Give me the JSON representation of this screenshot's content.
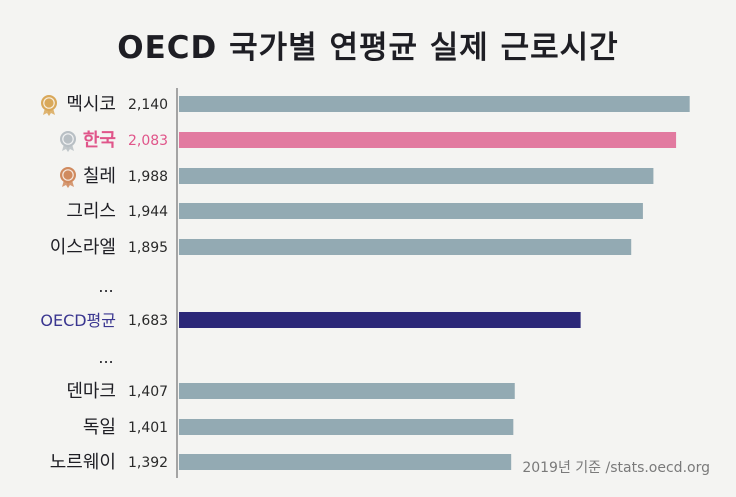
{
  "chart_data": {
    "type": "bar",
    "orientation": "horizontal",
    "title": "OECD 국가별 연평균 실제 근로시간",
    "source": "2019년 기준 /stats.oecd.org",
    "xlim": [
      0,
      2200
    ],
    "rows": [
      {
        "label": "멕시코",
        "value": 2140,
        "value_label": "2,140",
        "medal": "gold"
      },
      {
        "label": "한국",
        "value": 2083,
        "value_label": "2,083",
        "medal": "silver",
        "highlight": "korea"
      },
      {
        "label": "칠레",
        "value": 1988,
        "value_label": "1,988",
        "medal": "bronze"
      },
      {
        "label": "그리스",
        "value": 1944,
        "value_label": "1,944"
      },
      {
        "label": "이스라엘",
        "value": 1895,
        "value_label": "1,895"
      },
      {
        "label": "...",
        "ellipsis": true
      },
      {
        "label": "OECD평균",
        "value": 1683,
        "value_label": "1,683",
        "highlight": "average"
      },
      {
        "label": "...",
        "ellipsis": true
      },
      {
        "label": "덴마크",
        "value": 1407,
        "value_label": "1,407"
      },
      {
        "label": "독일",
        "value": 1401,
        "value_label": "1,401"
      },
      {
        "label": "노르웨이",
        "value": 1392,
        "value_label": "1,392"
      }
    ]
  },
  "colors": {
    "bar_default": "#93aab3",
    "bar_korea": "#e27aa0",
    "bar_average": "#2b2778",
    "label_default": "#1e1e24",
    "label_korea": "#e0558a",
    "label_average": "#3a3690",
    "axis": "#8a8a8a",
    "medal_gold": "#d9a85a",
    "medal_silver": "#b8bfc4",
    "medal_bronze": "#d08a5e"
  }
}
